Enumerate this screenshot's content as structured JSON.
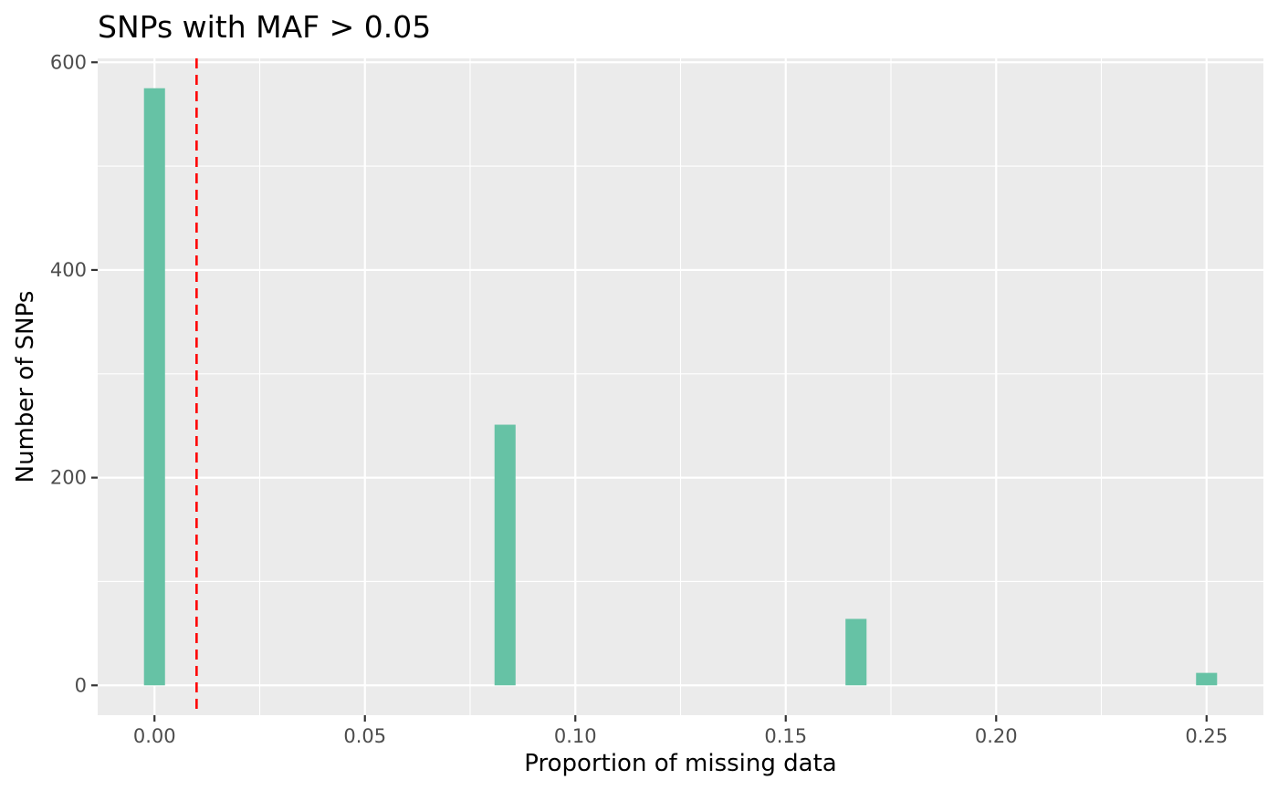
{
  "chart_data": {
    "type": "bar",
    "title": "SNPs with MAF > 0.05",
    "xlabel": "Proportion of missing data",
    "ylabel": "Number of SNPs",
    "bar_color": "#66c2a5",
    "panel_background": "#ebebeb",
    "grid": true,
    "bin_width": 0.005,
    "xlim": [
      -0.0135,
      0.2635
    ],
    "ylim": [
      -28.75,
      603.75
    ],
    "x_ticks": [
      0,
      0.05,
      0.1,
      0.15,
      0.2,
      0.25
    ],
    "x_tick_labels": [
      "0.00",
      "0.05",
      "0.10",
      "0.15",
      "0.20",
      "0.25"
    ],
    "y_ticks": [
      0,
      200,
      400,
      600
    ],
    "y_tick_labels": [
      "0",
      "200",
      "400",
      "600"
    ],
    "x": [
      0,
      0.0833,
      0.1667,
      0.25
    ],
    "values": [
      575,
      251,
      64,
      12
    ],
    "reference_line": {
      "x": 0.01,
      "color": "#ff0000",
      "style": "dashed"
    }
  }
}
